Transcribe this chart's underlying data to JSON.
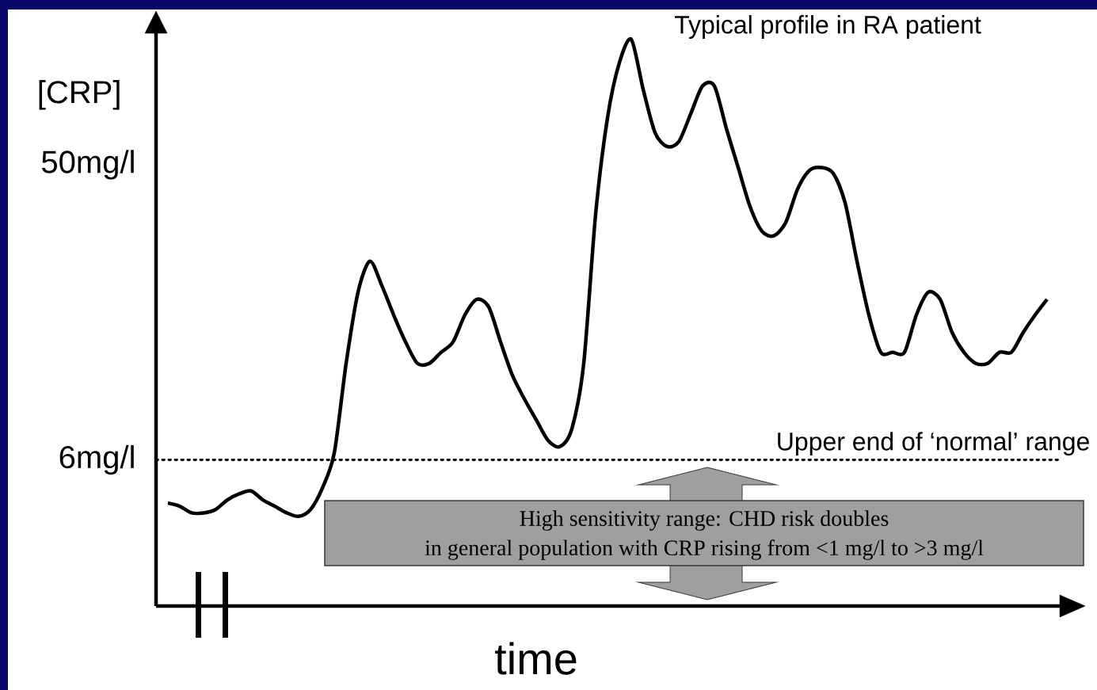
{
  "chart_data": {
    "type": "line",
    "ylabel": "[CRP]",
    "xlabel": "time",
    "log": true,
    "line_style": "solid",
    "categories": [
      null,
      null,
      null,
      null,
      null,
      null,
      null,
      null,
      null,
      null,
      null,
      null,
      null,
      null,
      null,
      null,
      null,
      null,
      null,
      null,
      null,
      null,
      null,
      null,
      null,
      null,
      null,
      null,
      null,
      null,
      null,
      null,
      null,
      null,
      null,
      null,
      null,
      null,
      null,
      null,
      null,
      null,
      null,
      null,
      null,
      null,
      null,
      null,
      null,
      null,
      null,
      null,
      null,
      null,
      null,
      null,
      null,
      null,
      null,
      null,
      null,
      null,
      null,
      null,
      null,
      null,
      null,
      null,
      null,
      null,
      null,
      null,
      null,
      null,
      null
    ],
    "series": [
      {
        "name": "Typical profile in RA patient",
        "color": "#000000",
        "values": [
          4.4,
          4.3,
          4.1,
          4.1,
          4.2,
          4.5,
          4.7,
          4.8,
          4.5,
          4.3,
          4.1,
          4.0,
          4.2,
          4.9,
          6.3,
          12,
          20,
          25,
          21,
          17,
          14,
          12,
          12,
          13,
          14,
          17,
          19,
          18,
          14,
          11,
          9.3,
          8.0,
          6.9,
          6.6,
          7.5,
          12,
          35,
          70,
          104,
          123,
          86,
          63,
          57,
          59,
          72,
          88,
          88,
          65,
          49,
          37,
          31,
          30,
          33,
          42,
          48,
          49,
          47,
          38,
          25,
          17,
          13,
          13,
          13,
          17,
          20,
          19,
          15,
          13,
          12,
          12,
          13,
          13,
          15,
          17,
          19
        ]
      }
    ],
    "ylim": [
      2.1,
      130
    ],
    "yticks": [
      {
        "value": 6,
        "label": "6mg/l"
      },
      {
        "value": 50,
        "label": "50mg/l"
      }
    ],
    "ref_lines": [
      {
        "axis": "y",
        "value": 6,
        "label": "Upper end of ‘normal’ range",
        "line_style": "dotted"
      }
    ],
    "annotations": [
      "High sensitivity range: CHD risk doubles",
      "in general population with CRP rising from <1 mg/l to >3 mg/l"
    ]
  }
}
